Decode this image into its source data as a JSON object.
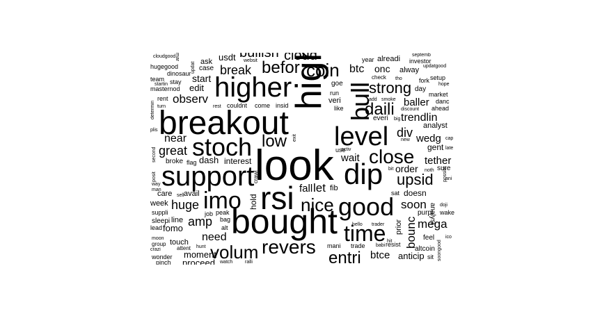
{
  "text_color": "#000000",
  "background": "#ffffff",
  "words": [
    {
      "text": "look",
      "weight": 10
    },
    {
      "text": "breakout",
      "weight": 8.5
    },
    {
      "text": "bought",
      "weight": 8.5
    },
    {
      "text": "high",
      "weight": 8
    },
    {
      "text": "rsi",
      "weight": 7.5
    },
    {
      "text": "dip",
      "weight": 7
    },
    {
      "text": "support",
      "weight": 6.5
    },
    {
      "text": "higher",
      "weight": 6.5
    },
    {
      "text": "level",
      "weight": 6
    },
    {
      "text": "stoch",
      "weight": 6
    },
    {
      "text": "imo",
      "weight": 6
    },
    {
      "text": "good",
      "weight": 6
    },
    {
      "text": "bull",
      "weight": 6
    },
    {
      "text": "time",
      "weight": 5
    },
    {
      "text": "close",
      "weight": 5
    },
    {
      "text": "revers",
      "weight": 5
    },
    {
      "text": "nice",
      "weight": 4.5
    },
    {
      "text": "volum",
      "weight": 4.5
    },
    {
      "text": "entri",
      "weight": 4.5
    },
    {
      "text": "coin",
      "weight": 4.5
    },
    {
      "text": "daili",
      "weight": 4.5
    },
    {
      "text": "befor",
      "weight": 4.2
    },
    {
      "text": "upsid",
      "weight": 4
    },
    {
      "text": "strong",
      "weight": 4
    },
    {
      "text": "low",
      "weight": 4
    },
    {
      "text": "bullish",
      "weight": 3.5
    },
    {
      "text": "cloud",
      "weight": 3.5
    },
    {
      "text": "break",
      "weight": 3.2
    },
    {
      "text": "great",
      "weight": 3
    },
    {
      "text": "huge",
      "weight": 3
    },
    {
      "text": "amp",
      "weight": 3
    },
    {
      "text": "soon",
      "weight": 3
    },
    {
      "text": "mega",
      "weight": 3
    },
    {
      "text": "div",
      "weight": 3
    },
    {
      "text": "bounc",
      "weight": 3
    },
    {
      "text": "trendlin",
      "weight": 2.8
    },
    {
      "text": "need",
      "weight": 2.8
    },
    {
      "text": "observ",
      "weight": 2.8
    },
    {
      "text": "near",
      "weight": 2.6
    },
    {
      "text": "btc",
      "weight": 2.6
    },
    {
      "text": "wedg",
      "weight": 2.6
    },
    {
      "text": "btce",
      "weight": 2.6
    },
    {
      "text": "let",
      "weight": 2.6
    },
    {
      "text": "wait",
      "weight": 2.4
    },
    {
      "text": "tether",
      "weight": 2.4
    },
    {
      "text": "baller",
      "weight": 2.4
    },
    {
      "text": "order",
      "weight": 2.4
    },
    {
      "text": "onc",
      "weight": 2.2
    },
    {
      "text": "fall",
      "weight": 2.2
    },
    {
      "text": "moment",
      "weight": 2.2
    },
    {
      "text": "edit",
      "weight": 2.2
    },
    {
      "text": "start",
      "weight": 2.2
    },
    {
      "text": "dash",
      "weight": 2.2
    },
    {
      "text": "interest",
      "weight": 2
    },
    {
      "text": "anticip",
      "weight": 2
    },
    {
      "text": "fomo",
      "weight": 2
    },
    {
      "text": "proceed",
      "weight": 2
    },
    {
      "text": "doesn",
      "weight": 1.9
    },
    {
      "text": "usdt",
      "weight": 1.9
    },
    {
      "text": "analyst",
      "weight": 1.6
    },
    {
      "text": "gent",
      "weight": 1.8
    },
    {
      "text": "hold",
      "weight": 1.8
    },
    {
      "text": "avail",
      "weight": 1.6
    },
    {
      "text": "care",
      "weight": 1.6
    },
    {
      "text": "week",
      "weight": 1.6
    },
    {
      "text": "line",
      "weight": 1.6
    },
    {
      "text": "touch",
      "weight": 1.6
    },
    {
      "text": "prior",
      "weight": 1.6
    },
    {
      "text": "fib",
      "weight": 1.6
    },
    {
      "text": "alreadi",
      "weight": 1.6
    },
    {
      "text": "alway",
      "weight": 1.5
    },
    {
      "text": "ask",
      "weight": 1.5
    },
    {
      "text": "case",
      "weight": 1.5
    },
    {
      "text": "goe",
      "weight": 1.5
    },
    {
      "text": "veri",
      "weight": 1.5
    },
    {
      "text": "feel",
      "weight": 1.5
    },
    {
      "text": "broke",
      "weight": 1.4
    },
    {
      "text": "flag",
      "weight": 1.2
    },
    {
      "text": "everi",
      "weight": 1.4
    },
    {
      "text": "analysi",
      "weight": 1.5
    },
    {
      "text": "sure",
      "weight": 1.4
    },
    {
      "text": "day",
      "weight": 1.4
    },
    {
      "text": "sleepi",
      "weight": 1.4
    },
    {
      "text": "suppli",
      "weight": 1.4
    },
    {
      "text": "dinosaur",
      "weight": 1.4
    },
    {
      "text": "investor",
      "weight": 1.3
    },
    {
      "text": "year",
      "weight": 1.3
    },
    {
      "text": "team",
      "weight": 1.3
    },
    {
      "text": "stay",
      "weight": 1.3
    },
    {
      "text": "masternod",
      "weight": 1.3
    },
    {
      "text": "rent",
      "weight": 1.3
    },
    {
      "text": "couldnt",
      "weight": 1.3
    },
    {
      "text": "come",
      "weight": 1.3
    },
    {
      "text": "insid",
      "weight": 1.3
    },
    {
      "text": "like",
      "weight": 1.3
    },
    {
      "text": "run",
      "weight": 1.2
    },
    {
      "text": "use",
      "weight": 1.3
    },
    {
      "text": "crawl",
      "weight": 1.2
    },
    {
      "text": "peak",
      "weight": 1.2
    },
    {
      "text": "job",
      "weight": 1.2
    },
    {
      "text": "bag",
      "weight": 1.2
    },
    {
      "text": "alt",
      "weight": 1.2
    },
    {
      "text": "lead",
      "weight": 1.2
    },
    {
      "text": "purpl",
      "weight": 1.3
    },
    {
      "text": "wake",
      "weight": 1.2
    },
    {
      "text": "altcoin",
      "weight": 1.3
    },
    {
      "text": "sat",
      "weight": 1.3
    },
    {
      "text": "mani",
      "weight": 1.2
    },
    {
      "text": "trade",
      "weight": 1.2
    },
    {
      "text": "resist",
      "weight": 1.2
    },
    {
      "text": "sit",
      "weight": 1.2
    },
    {
      "text": "market",
      "weight": 1.2
    },
    {
      "text": "danc",
      "weight": 1.2
    },
    {
      "text": "ahead",
      "weight": 1.2
    },
    {
      "text": "fork",
      "weight": 1.2
    },
    {
      "text": "setup",
      "weight": 1.2
    },
    {
      "text": "check",
      "weight": 1.1
    },
    {
      "text": "hugegood",
      "weight": 1.2
    },
    {
      "text": "wonder",
      "weight": 1.2
    },
    {
      "text": "pinch",
      "weight": 1.2
    },
    {
      "text": "group",
      "weight": 1.1
    },
    {
      "text": "moon",
      "weight": 1
    },
    {
      "text": "crazi",
      "weight": 1
    },
    {
      "text": "attent",
      "weight": 1.1
    },
    {
      "text": "hunt",
      "weight": 1
    },
    {
      "text": "watch",
      "weight": 1
    },
    {
      "text": "ralli",
      "weight": 1
    },
    {
      "text": "way",
      "weight": 1
    },
    {
      "text": "man",
      "weight": 1
    },
    {
      "text": "posit",
      "weight": 1
    },
    {
      "text": "second",
      "weight": 1
    },
    {
      "text": "determin",
      "weight": 1
    },
    {
      "text": "turn",
      "weight": 1
    },
    {
      "text": "startin",
      "weight": 1
    },
    {
      "text": "cloudgood",
      "weight": 1
    },
    {
      "text": "websit",
      "weight": 1
    },
    {
      "text": "updat",
      "weight": 1
    },
    {
      "text": "updatgood",
      "weight": 1
    },
    {
      "text": "septemb",
      "weight": 1
    },
    {
      "text": "hope",
      "weight": 1
    },
    {
      "text": "tho",
      "weight": 1
    },
    {
      "text": "add",
      "weight": 1
    },
    {
      "text": "smoke",
      "weight": 1
    },
    {
      "text": "big",
      "weight": 1
    },
    {
      "text": "discount",
      "weight": 1
    },
    {
      "text": "new",
      "weight": 1
    },
    {
      "text": "cap",
      "weight": 1
    },
    {
      "text": "late",
      "weight": 1
    },
    {
      "text": "activ",
      "weight": 1
    },
    {
      "text": "exit",
      "weight": 1
    },
    {
      "text": "bit",
      "weight": 1
    },
    {
      "text": "noth",
      "weight": 1
    },
    {
      "text": "ani",
      "weight": 1
    },
    {
      "text": "possibl",
      "weight": 1
    },
    {
      "text": "doji",
      "weight": 1
    },
    {
      "text": "hello",
      "weight": 1
    },
    {
      "text": "trader",
      "weight": 1
    },
    {
      "text": "hit",
      "weight": 1
    },
    {
      "text": "babi",
      "weight": 1
    },
    {
      "text": "soongood",
      "weight": 1
    },
    {
      "text": "ico",
      "weight": 1
    },
    {
      "text": "rest",
      "weight": 1
    },
    {
      "text": "sell",
      "weight": 1
    },
    {
      "text": "plis",
      "weight": 1
    },
    {
      "text": "mar",
      "weight": 1
    }
  ]
}
